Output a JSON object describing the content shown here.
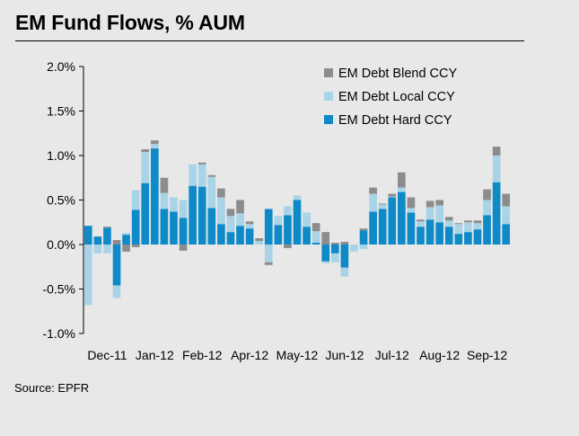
{
  "title": "EM Fund Flows, % AUM",
  "source": "Source: EPFR",
  "chart_data": {
    "type": "bar",
    "stacked": true,
    "title": "EM Fund Flows, % AUM",
    "xlabel": "",
    "ylabel": "",
    "ylim": [
      -1.0,
      2.0
    ],
    "y_ticks": [
      2.0,
      1.5,
      1.0,
      0.5,
      0.0,
      -0.5,
      -1.0
    ],
    "y_tick_labels": [
      "2.0%",
      "1.5%",
      "1.0%",
      "0.5%",
      "0.0%",
      "-0.5%",
      "-1.0%"
    ],
    "x_tick_labels": [
      "Dec-11",
      "Jan-12",
      "Feb-12",
      "Apr-12",
      "May-12",
      "Jun-12",
      "Jul-12",
      "Aug-12",
      "Sep-12"
    ],
    "grid": false,
    "legend_position": "top-right",
    "series": [
      {
        "name": "EM Debt Blend CCY",
        "color": "#8c8c8c",
        "values": [
          0,
          0,
          0.01,
          0.05,
          -0.08,
          -0.03,
          0.03,
          0.04,
          0.17,
          0,
          -0.07,
          0,
          0.02,
          0.02,
          0.1,
          0.08,
          0.15,
          0.03,
          0.03,
          -0.03,
          0,
          -0.04,
          0,
          0,
          0.09,
          0.14,
          0.02,
          0.03,
          0,
          0.02,
          0.07,
          0.01,
          0.03,
          0.17,
          0.12,
          0.02,
          0.07,
          0.06,
          0.04,
          0.01,
          0.02,
          0.03,
          0.12,
          0.1,
          0.14
        ]
      },
      {
        "name": "EM Debt Local CCY",
        "color": "#a9d4e7",
        "values": [
          -0.68,
          -0.1,
          -0.1,
          -0.14,
          0.02,
          0.22,
          0.35,
          0.05,
          0.18,
          0.16,
          0.2,
          0.24,
          0.25,
          0.35,
          0.3,
          0.18,
          0.14,
          0.05,
          0.04,
          -0.2,
          0.1,
          0.1,
          0.05,
          0.16,
          0.13,
          -0.02,
          -0.1,
          -0.1,
          -0.08,
          -0.05,
          0.2,
          0.05,
          0.01,
          0.05,
          0.05,
          0.06,
          0.14,
          0.19,
          0.07,
          0.11,
          0.11,
          0.07,
          0.17,
          0.3,
          0.2
        ]
      },
      {
        "name": "EM Debt Hard CCY",
        "color": "#0e8ac8",
        "values": [
          0.21,
          0.09,
          0.19,
          -0.46,
          0.11,
          0.39,
          0.69,
          1.08,
          0.4,
          0.37,
          0.3,
          0.66,
          0.65,
          0.41,
          0.23,
          0.14,
          0.21,
          0.18,
          0,
          0.4,
          0.22,
          0.33,
          0.5,
          0.2,
          0.02,
          -0.19,
          -0.1,
          -0.26,
          0,
          0.16,
          0.37,
          0.4,
          0.53,
          0.59,
          0.36,
          0.2,
          0.28,
          0.25,
          0.2,
          0.12,
          0.14,
          0.17,
          0.33,
          0.7,
          0.23
        ]
      }
    ]
  }
}
